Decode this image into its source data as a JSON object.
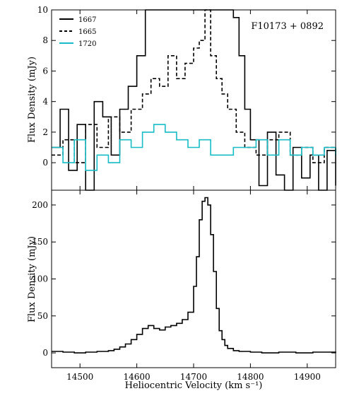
{
  "chart_data": [
    {
      "type": "line",
      "panel": "top",
      "annotation": "F10173 + 0892",
      "ylabel": "Flux Density (mJy)",
      "xlim": [
        14450,
        14950
      ],
      "ylim": [
        -1.8,
        10
      ],
      "yticks": [
        0,
        2,
        4,
        6,
        8,
        10
      ],
      "grid": false,
      "legend_position": "top-left",
      "series": [
        {
          "name": "1667",
          "style": "solid",
          "color": "#000000",
          "x": [
            14450,
            14465,
            14480,
            14495,
            14510,
            14525,
            14540,
            14555,
            14570,
            14585,
            14600,
            14615,
            14630,
            14645,
            14660,
            14670,
            14680,
            14690,
            14700,
            14710,
            14720,
            14730,
            14740,
            14750,
            14760,
            14770,
            14780,
            14790,
            14800,
            14815,
            14830,
            14845,
            14860,
            14875,
            14890,
            14905,
            14920,
            14935,
            14950
          ],
          "values": [
            1.0,
            3.5,
            -0.5,
            2.5,
            -1.8,
            4.0,
            3.0,
            0.5,
            3.5,
            5.0,
            7.0,
            10.0,
            10.0,
            10.0,
            10.0,
            10.0,
            10.0,
            10.0,
            10.0,
            10.0,
            10.0,
            10.0,
            10.0,
            10.0,
            10.0,
            9.5,
            7.0,
            3.5,
            1.5,
            -1.5,
            2.0,
            -0.8,
            -1.8,
            1.0,
            -1.0,
            0.5,
            -1.8,
            0.8,
            -1.5
          ]
        },
        {
          "name": "1665",
          "style": "dashed",
          "color": "#000000",
          "x": [
            14450,
            14470,
            14490,
            14510,
            14530,
            14550,
            14570,
            14590,
            14610,
            14625,
            14640,
            14655,
            14670,
            14685,
            14700,
            14710,
            14720,
            14730,
            14740,
            14750,
            14760,
            14775,
            14790,
            14810,
            14830,
            14850,
            14870,
            14890,
            14910,
            14930,
            14950
          ],
          "values": [
            0.5,
            1.5,
            0.0,
            2.5,
            1.0,
            3.0,
            2.0,
            3.5,
            4.5,
            5.5,
            5.0,
            7.0,
            5.5,
            6.5,
            7.5,
            8.0,
            10.0,
            7.0,
            5.5,
            4.5,
            3.5,
            2.0,
            1.0,
            0.5,
            1.5,
            2.0,
            0.5,
            1.0,
            0.0,
            1.0,
            0.5
          ]
        },
        {
          "name": "1720",
          "style": "solid",
          "color": "#17bcc6",
          "x": [
            14450,
            14470,
            14490,
            14510,
            14530,
            14550,
            14570,
            14590,
            14610,
            14630,
            14650,
            14670,
            14690,
            14710,
            14730,
            14750,
            14770,
            14790,
            14810,
            14830,
            14850,
            14870,
            14890,
            14910,
            14930,
            14950
          ],
          "values": [
            1.0,
            0.0,
            1.5,
            -0.5,
            0.5,
            0.0,
            1.5,
            1.0,
            2.0,
            2.5,
            2.0,
            1.5,
            1.0,
            1.5,
            0.5,
            0.5,
            1.0,
            1.0,
            1.5,
            0.5,
            1.5,
            0.5,
            1.0,
            0.5,
            1.0,
            0.5
          ]
        }
      ]
    },
    {
      "type": "line",
      "panel": "bottom",
      "xlabel": "Heliocentric Velocity (km s⁻¹)",
      "ylabel": "Flux Density (mJy)",
      "xlim": [
        14450,
        14950
      ],
      "ylim": [
        -20,
        220
      ],
      "xticks": [
        14500,
        14600,
        14700,
        14800,
        14900
      ],
      "yticks": [
        0,
        50,
        100,
        150,
        200
      ],
      "grid": false,
      "series": [
        {
          "name": "",
          "style": "solid",
          "color": "#000000",
          "x": [
            14450,
            14470,
            14490,
            14510,
            14530,
            14550,
            14560,
            14570,
            14580,
            14590,
            14600,
            14610,
            14620,
            14630,
            14640,
            14650,
            14660,
            14670,
            14680,
            14690,
            14700,
            14705,
            14710,
            14715,
            14720,
            14725,
            14730,
            14735,
            14740,
            14745,
            14750,
            14755,
            14760,
            14770,
            14780,
            14800,
            14820,
            14850,
            14880,
            14910,
            14950
          ],
          "values": [
            2,
            1,
            0,
            1,
            2,
            3,
            5,
            8,
            12,
            18,
            25,
            33,
            37,
            33,
            31,
            35,
            37,
            40,
            45,
            55,
            90,
            130,
            180,
            205,
            210,
            200,
            160,
            110,
            60,
            30,
            18,
            10,
            6,
            3,
            2,
            1,
            0,
            1,
            0,
            1,
            0
          ]
        }
      ]
    }
  ]
}
